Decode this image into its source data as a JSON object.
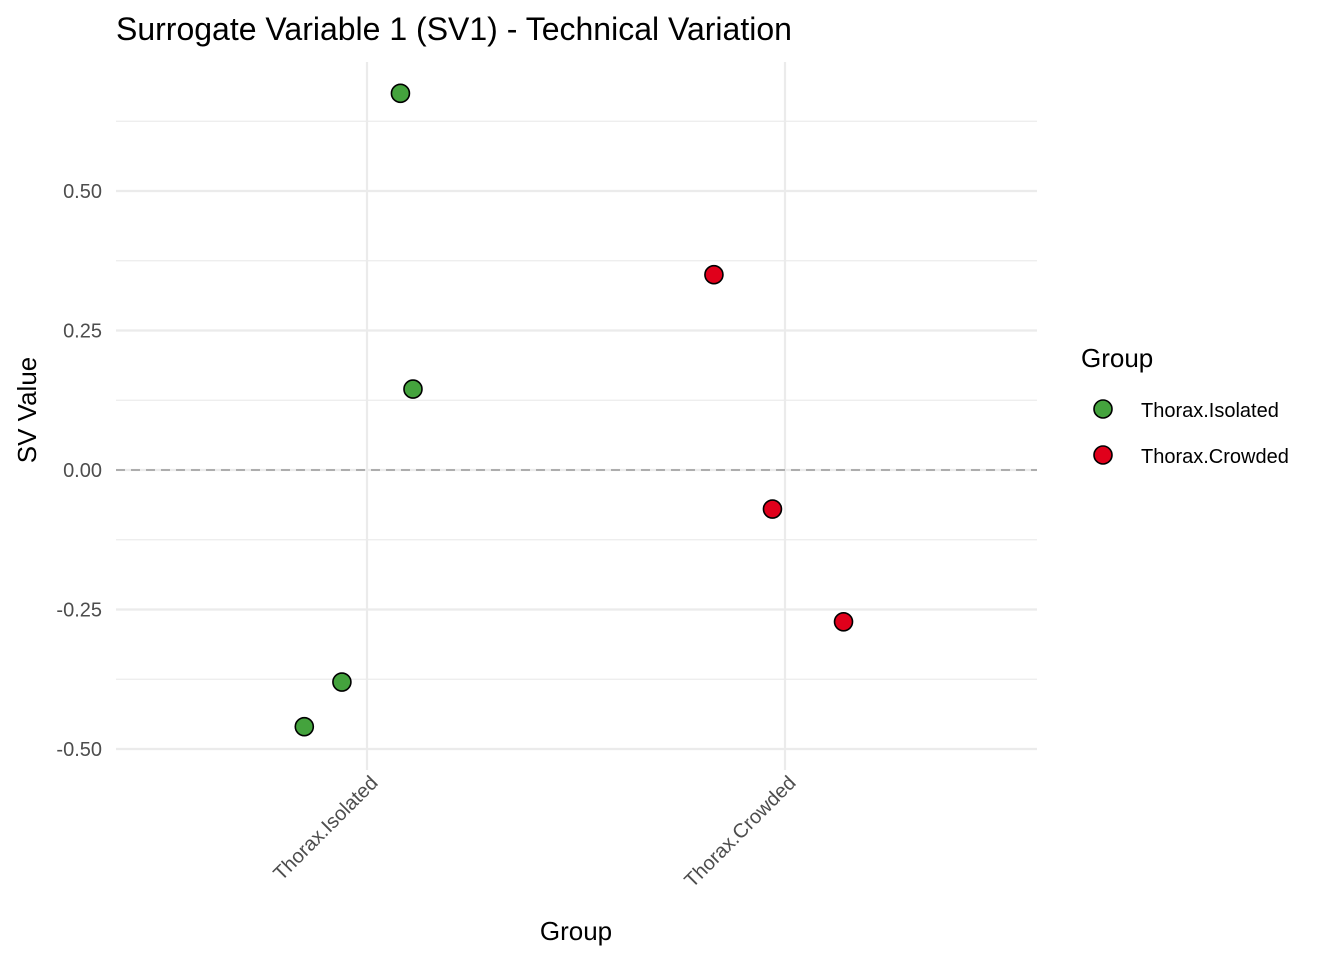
{
  "chart_data": {
    "type": "scatter",
    "title": "Surrogate Variable 1 (SV1) - Technical Variation",
    "xlabel": "Group",
    "ylabel": "SV Value",
    "categories": [
      "Thorax.Isolated",
      "Thorax.Crowded"
    ],
    "ylim": [
      -0.535,
      0.69
    ],
    "yticks": [
      -0.5,
      -0.25,
      0.0,
      0.25,
      0.5
    ],
    "ytick_labels": [
      "-0.50",
      "-0.25",
      "0.00",
      "0.25",
      "0.50"
    ],
    "reference_line": {
      "y": 0,
      "style": "dashed"
    },
    "grid": true,
    "legend": {
      "title": "Group",
      "position": "right",
      "entries": [
        {
          "label": "Thorax.Isolated",
          "color": "#44a33d"
        },
        {
          "label": "Thorax.Crowded",
          "color": "#e0001b"
        }
      ]
    },
    "series": [
      {
        "name": "Thorax.Isolated",
        "color": "#44a33d",
        "points": [
          {
            "category": "Thorax.Isolated",
            "jitter": 0.08,
            "y": 0.675
          },
          {
            "category": "Thorax.Isolated",
            "jitter": 0.11,
            "y": 0.145
          },
          {
            "category": "Thorax.Isolated",
            "jitter": -0.06,
            "y": -0.38
          },
          {
            "category": "Thorax.Isolated",
            "jitter": -0.15,
            "y": -0.46
          }
        ]
      },
      {
        "name": "Thorax.Crowded",
        "color": "#e0001b",
        "points": [
          {
            "category": "Thorax.Crowded",
            "jitter": -0.17,
            "y": 0.35
          },
          {
            "category": "Thorax.Crowded",
            "jitter": -0.03,
            "y": -0.07
          },
          {
            "category": "Thorax.Crowded",
            "jitter": 0.14,
            "y": -0.272
          }
        ]
      }
    ]
  }
}
